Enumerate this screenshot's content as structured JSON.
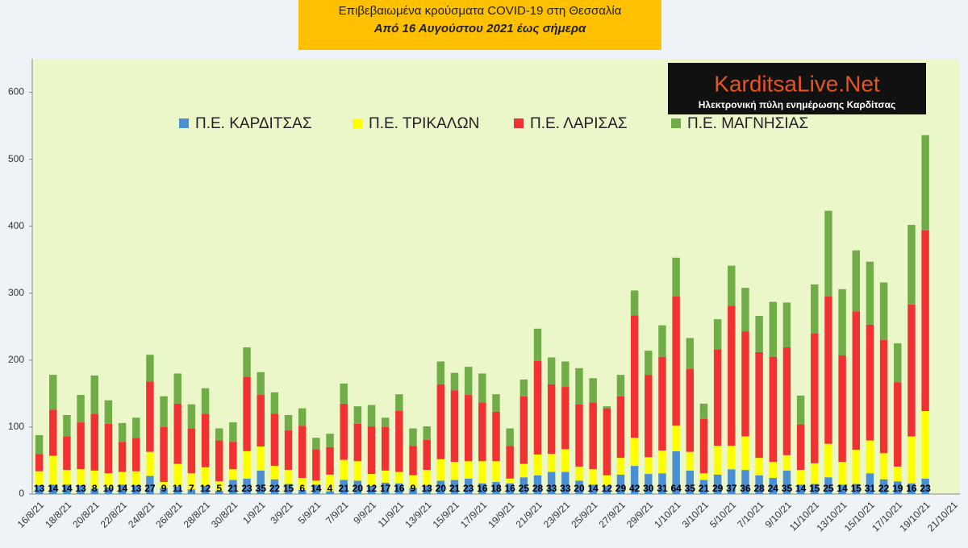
{
  "chart_data": {
    "type": "stacked_bar",
    "title": "Επιβεβαιωμένα κρούσματα COVID-19 στη Θεσσαλία",
    "subtitle": "Από 16 Αυγούστου 2021 έως σήμερα",
    "annotations": [
      "KarditsaLive.Net",
      "Ηλεκτρονική πύλη ενημέρωσης Καρδίτσας"
    ],
    "categories": [
      "16/8/21",
      null,
      "18/8/21",
      null,
      "20/8/21",
      null,
      "22/8/21",
      null,
      "24/8/21",
      null,
      "26/8/21",
      null,
      "28/8/21",
      null,
      "30/8/21",
      null,
      "1/9/21",
      null,
      "3/9/21",
      null,
      "5/9/21",
      null,
      "7/9/21",
      null,
      "9/9/21",
      null,
      "11/9/21",
      null,
      "13/9/21",
      null,
      "15/9/21",
      null,
      "17/9/21",
      null,
      "19/9/21",
      null,
      "21/9/21",
      null,
      "23/9/21",
      null,
      "25/9/21",
      null,
      "27/9/21",
      null,
      "29/9/21",
      null,
      "1/10/21",
      null,
      "3/10/21",
      null,
      "5/10/21",
      null,
      "7/10/21",
      null,
      "9/10/21",
      null,
      "11/10/21",
      null,
      "13/10/21",
      null,
      "15/10/21",
      null,
      "17/10/21",
      null,
      "19/10/21",
      null,
      "21/10/21"
    ],
    "series": [
      {
        "name": "Π.Ε. ΚΑΡΔΙΤΣΑΣ",
        "color": "#4a8fd4",
        "show_labels": true,
        "values": [
          13,
          14,
          14,
          13,
          8,
          10,
          14,
          13,
          27,
          9,
          11,
          7,
          12,
          5,
          21,
          23,
          35,
          22,
          15,
          6,
          14,
          4,
          21,
          20,
          12,
          17,
          16,
          9,
          13,
          20,
          21,
          23,
          16,
          18,
          16,
          25,
          28,
          33,
          33,
          20,
          14,
          12,
          29,
          42,
          30,
          31,
          64,
          35,
          21,
          29,
          37,
          36,
          28,
          24,
          35,
          14,
          15,
          25,
          14,
          15,
          31,
          22,
          19,
          16,
          23,
          null,
          null
        ]
      },
      {
        "name": "Π.Ε. ΤΡΙΚΑΛΩΝ",
        "color": "#ffff00",
        "values": [
          21,
          43,
          22,
          24,
          27,
          21,
          19,
          21,
          36,
          9,
          34,
          24,
          28,
          14,
          16,
          41,
          36,
          20,
          21,
          18,
          6,
          25,
          30,
          29,
          18,
          18,
          17,
          19,
          23,
          32,
          27,
          26,
          33,
          31,
          7,
          20,
          31,
          27,
          34,
          21,
          23,
          16,
          25,
          42,
          25,
          34,
          38,
          28,
          10,
          43,
          35,
          50,
          26,
          24,
          23,
          22,
          31,
          50,
          34,
          51,
          49,
          39,
          22,
          70,
          101,
          null,
          null
        ]
      },
      {
        "name": "Π.Ε. ΛΑΡΙΣΑΣ",
        "color": "#f03232",
        "values": [
          26,
          69,
          50,
          70,
          85,
          74,
          45,
          50,
          105,
          82,
          90,
          67,
          80,
          61,
          41,
          111,
          77,
          78,
          59,
          78,
          47,
          41,
          84,
          56,
          71,
          65,
          91,
          44,
          45,
          112,
          107,
          99,
          88,
          74,
          49,
          101,
          140,
          104,
          93,
          93,
          100,
          100,
          92,
          183,
          123,
          140,
          193,
          124,
          81,
          144,
          209,
          157,
          158,
          157,
          161,
          68,
          194,
          220,
          159,
          207,
          173,
          169,
          126,
          197,
          270,
          null,
          null
        ]
      },
      {
        "name": "Π.Ε. ΜΑΓΝΗΣΙΑΣ",
        "color": "#70ad47",
        "values": [
          28,
          52,
          32,
          41,
          57,
          35,
          28,
          30,
          40,
          46,
          45,
          36,
          38,
          18,
          29,
          44,
          34,
          32,
          23,
          26,
          17,
          20,
          30,
          26,
          32,
          14,
          25,
          26,
          20,
          34,
          26,
          42,
          43,
          26,
          26,
          25,
          48,
          40,
          38,
          54,
          36,
          3,
          32,
          37,
          36,
          47,
          58,
          46,
          23,
          45,
          60,
          65,
          54,
          82,
          67,
          43,
          73,
          128,
          99,
          91,
          94,
          86,
          58,
          119,
          142,
          null,
          null
        ]
      }
    ],
    "ylim": [
      0,
      650
    ],
    "yticks": [
      0,
      100,
      200,
      300,
      400,
      500,
      600
    ],
    "grid": false
  }
}
